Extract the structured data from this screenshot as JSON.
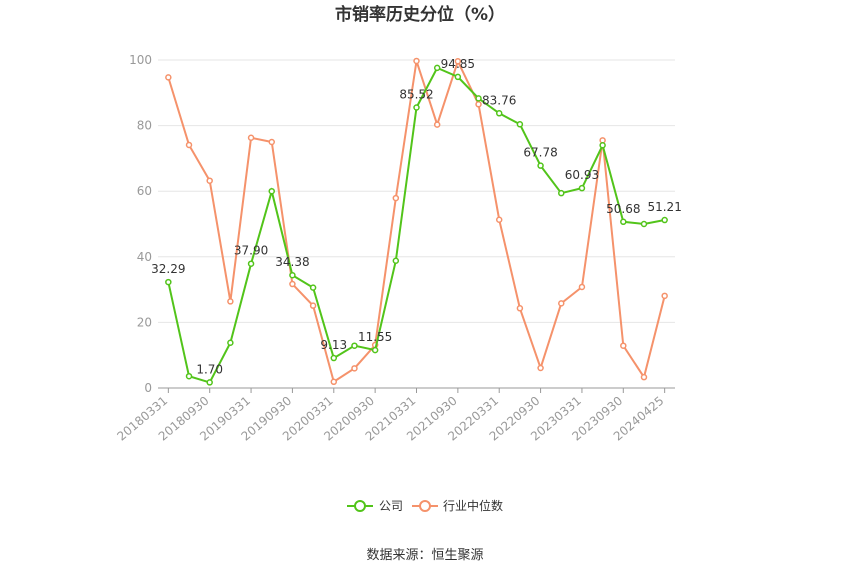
{
  "chart_data": {
    "type": "line",
    "title": "市销率历史分位（%）",
    "xlabel": "",
    "ylabel": "",
    "ylim": [
      0,
      100
    ],
    "yticks": [
      "0",
      "20",
      "40",
      "60",
      "80",
      "100"
    ],
    "x": [
      "20180331",
      "20180630",
      "20180930",
      "20181231",
      "20190331",
      "20190630",
      "20190930",
      "20191231",
      "20200331",
      "20200630",
      "20200930",
      "20201231",
      "20210331",
      "20210630",
      "20210930",
      "20211231",
      "20220331",
      "20220630",
      "20220930",
      "20221231",
      "20230331",
      "20230630",
      "20230930",
      "20231231",
      "20240425"
    ],
    "x_tick_labels": [
      "20180331",
      "20180930",
      "20190331",
      "20190930",
      "20200331",
      "20200930",
      "20210331",
      "20210930",
      "20220331",
      "20220930",
      "20230331",
      "20230930",
      "20240425"
    ],
    "series": [
      {
        "name": "公司",
        "color": "#52c41a",
        "values": [
          32.29,
          3.6,
          1.7,
          13.8,
          37.9,
          60.0,
          34.38,
          30.6,
          9.13,
          12.9,
          11.55,
          38.8,
          85.52,
          97.6,
          94.85,
          88.3,
          83.76,
          80.4,
          67.78,
          59.4,
          60.93,
          74.0,
          50.68,
          50.0,
          51.21
        ],
        "labels": [
          "32.29",
          "",
          "1.70",
          "",
          "37.90",
          "",
          "34.38",
          "",
          "9.13",
          "",
          "11.55",
          "",
          "85.52",
          "",
          "94.85",
          "",
          "83.76",
          "",
          "67.78",
          "",
          "60.93",
          "",
          "50.68",
          "",
          "51.21"
        ]
      },
      {
        "name": "行业中位数",
        "color": "#f5926b",
        "values": [
          94.7,
          74.1,
          63.2,
          26.4,
          76.3,
          75.0,
          31.7,
          25.1,
          1.9,
          6.0,
          13.1,
          57.9,
          99.7,
          80.3,
          99.6,
          86.5,
          51.3,
          24.3,
          6.1,
          25.8,
          30.8,
          75.5,
          12.9,
          3.3,
          28.1
        ]
      }
    ],
    "legend": "bottom-center",
    "grid": true
  },
  "footer": {
    "source": "数据来源：恒生聚源"
  }
}
